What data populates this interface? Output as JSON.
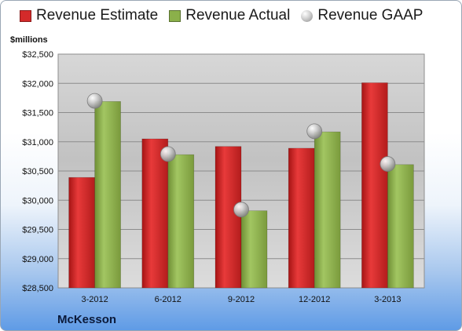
{
  "chart_data": {
    "type": "bar",
    "categories": [
      "3-2012",
      "6-2012",
      "9-2012",
      "12-2012",
      "3-2013"
    ],
    "series": [
      {
        "name": "Revenue Estimate",
        "type": "bar",
        "color": "#d42a2a",
        "values": [
          30390,
          31050,
          30920,
          30890,
          32010
        ]
      },
      {
        "name": "Revenue Actual",
        "type": "bar",
        "color": "#8bb04a",
        "values": [
          31690,
          30780,
          29820,
          31170,
          30610
        ]
      },
      {
        "name": "Revenue GAAP",
        "type": "scatter",
        "color": "#b8b8b8",
        "values": [
          31700,
          30790,
          29840,
          31180,
          30620
        ]
      }
    ],
    "ylabel": "$millions",
    "ylim": [
      28500,
      32500
    ],
    "yticks": [
      "$28,500",
      "$29,000",
      "$29,500",
      "$30,000",
      "$30,500",
      "$31,000",
      "$31,500",
      "$32,000",
      "$32,500"
    ],
    "grid": true,
    "legend": "top"
  },
  "company": "McKesson"
}
